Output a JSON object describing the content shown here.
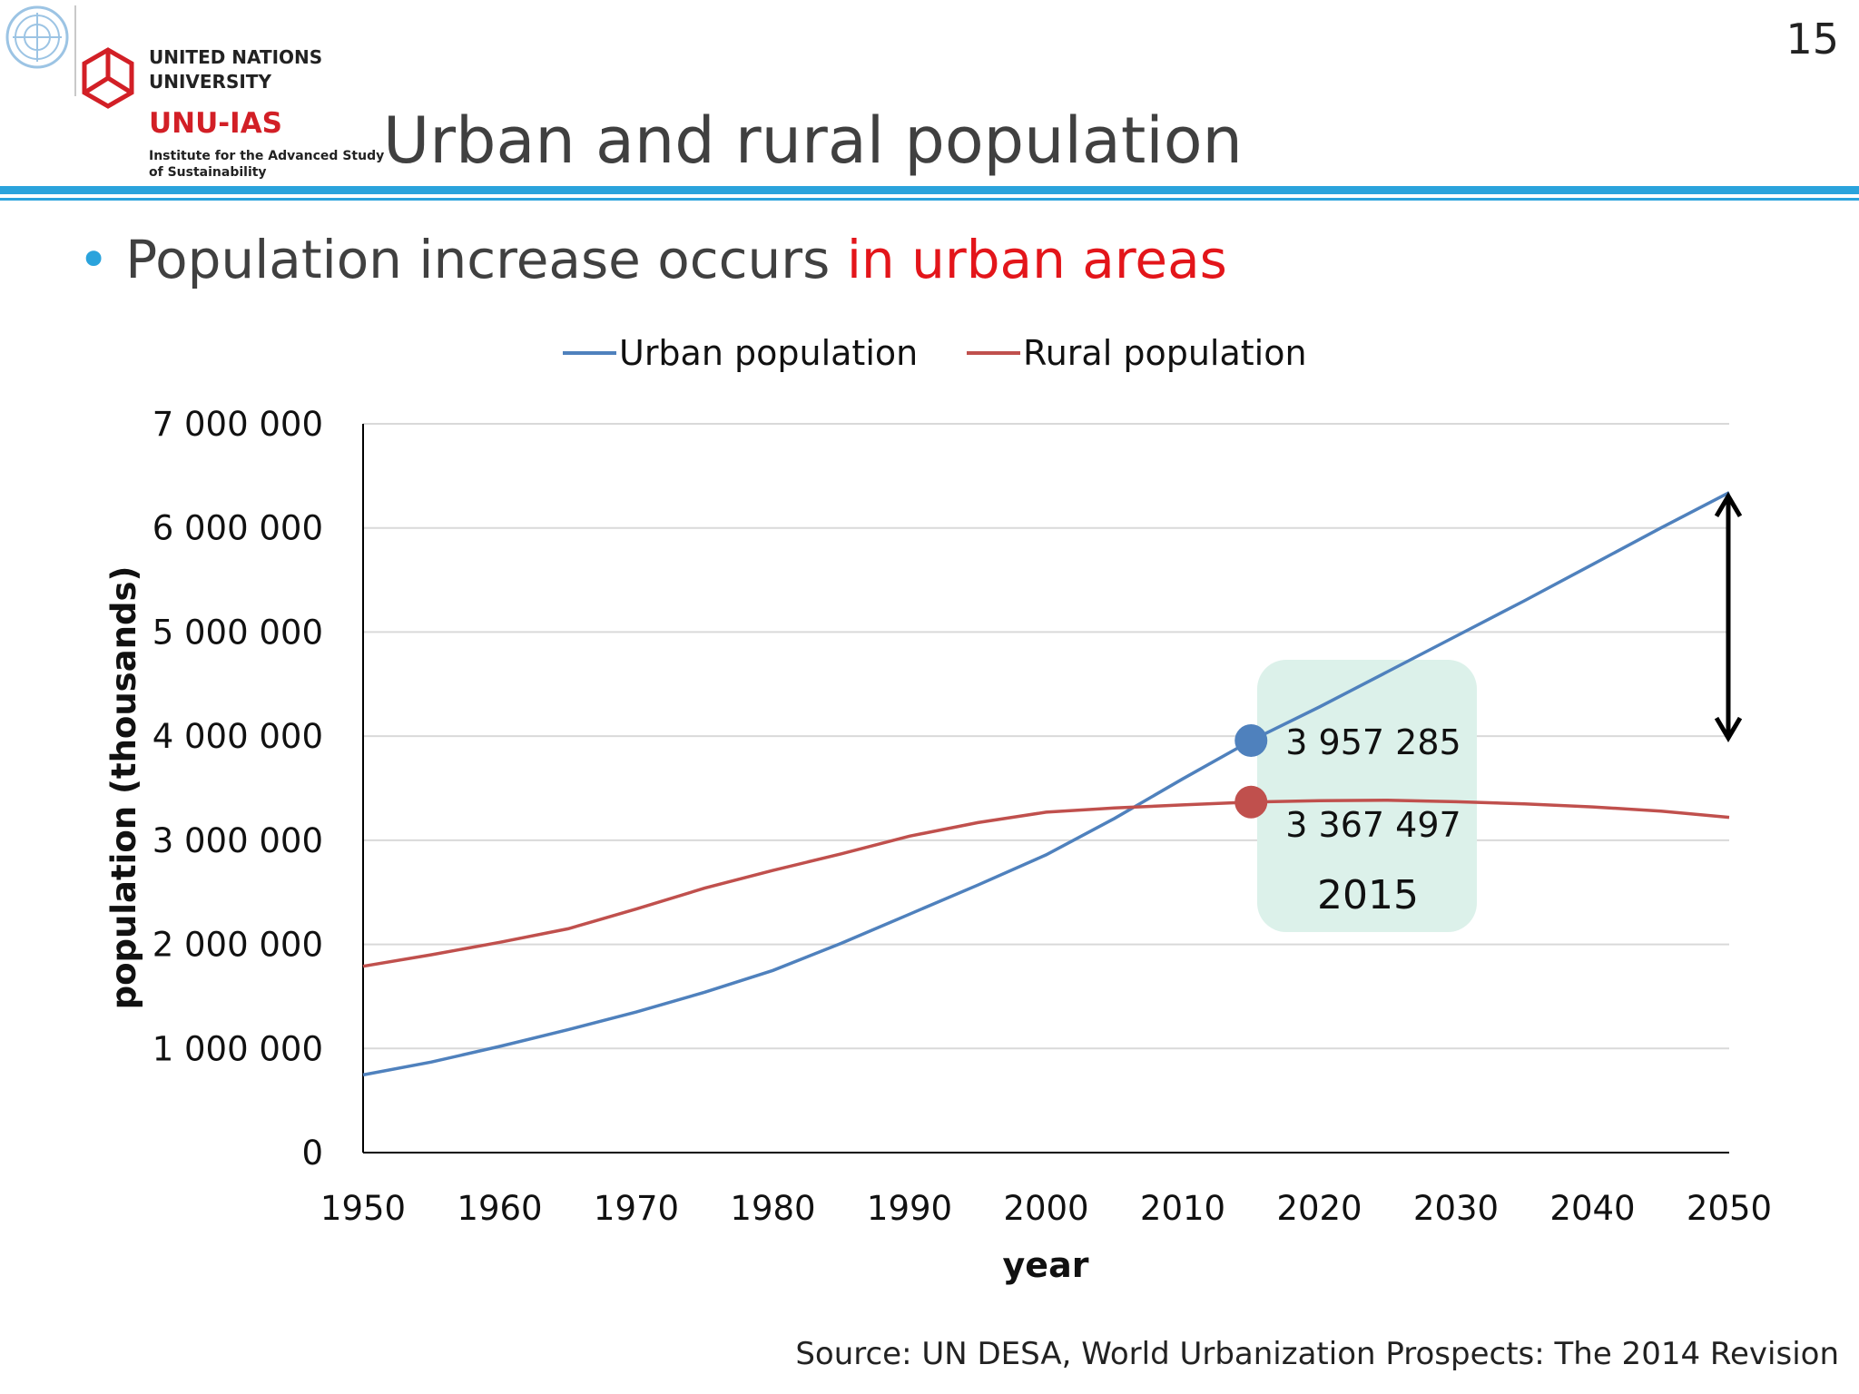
{
  "header": {
    "page_number": "15",
    "org_name_line1": "UNITED NATIONS",
    "org_name_line2": "UNIVERSITY",
    "org_short": "UNU-IAS",
    "org_institute_line1": "Institute for the Advanced Study",
    "org_institute_line2": "of Sustainability",
    "title": "Urban and rural population"
  },
  "bullet": {
    "text_plain": "Population increase occurs ",
    "text_highlight": "in urban areas",
    "highlight_color": "#e3151a"
  },
  "chart_data": {
    "type": "line",
    "title": "",
    "xlabel": "year",
    "ylabel": "population (thousands)",
    "xlim": [
      1950,
      2050
    ],
    "ylim": [
      0,
      7000000
    ],
    "x_ticks": [
      1950,
      1960,
      1970,
      1980,
      1990,
      2000,
      2010,
      2020,
      2030,
      2040,
      2050
    ],
    "y_ticks": [
      0,
      1000000,
      2000000,
      3000000,
      4000000,
      5000000,
      6000000,
      7000000
    ],
    "y_tick_labels": [
      "0",
      "1 000 000",
      "2 000 000",
      "3 000 000",
      "4 000 000",
      "5 000 000",
      "6 000 000",
      "7 000 000"
    ],
    "grid": true,
    "legend_position": "top",
    "x": [
      1950,
      1955,
      1960,
      1965,
      1970,
      1975,
      1980,
      1985,
      1990,
      1995,
      2000,
      2005,
      2010,
      2015,
      2020,
      2025,
      2030,
      2035,
      2040,
      2045,
      2050
    ],
    "series": [
      {
        "name": "Urban population",
        "color": "#4f81bd",
        "values": [
          746000,
          870000,
          1020000,
          1180000,
          1350000,
          1540000,
          1750000,
          2010000,
          2290000,
          2570000,
          2860000,
          3210000,
          3590000,
          3957285,
          4280000,
          4620000,
          4960000,
          5300000,
          5650000,
          6000000,
          6340000
        ]
      },
      {
        "name": "Rural population",
        "color": "#c0504d",
        "values": [
          1790000,
          1900000,
          2020000,
          2150000,
          2340000,
          2540000,
          2710000,
          2870000,
          3040000,
          3170000,
          3270000,
          3310000,
          3340000,
          3367497,
          3380000,
          3385000,
          3370000,
          3350000,
          3320000,
          3280000,
          3220000
        ]
      }
    ],
    "highlight": {
      "year": 2015,
      "year_label": "2015",
      "urban_value": 3957285,
      "urban_label": "3 957 285",
      "rural_value": 3367497,
      "rural_label": "3 367 497",
      "box_color": "#dcf1ea"
    },
    "arrow": {
      "x": 2050,
      "from_value": 4000000,
      "to_value": 6340000,
      "color": "#000000"
    }
  },
  "source": "Source: UN DESA, World Urbanization Prospects: The 2014 Revision"
}
